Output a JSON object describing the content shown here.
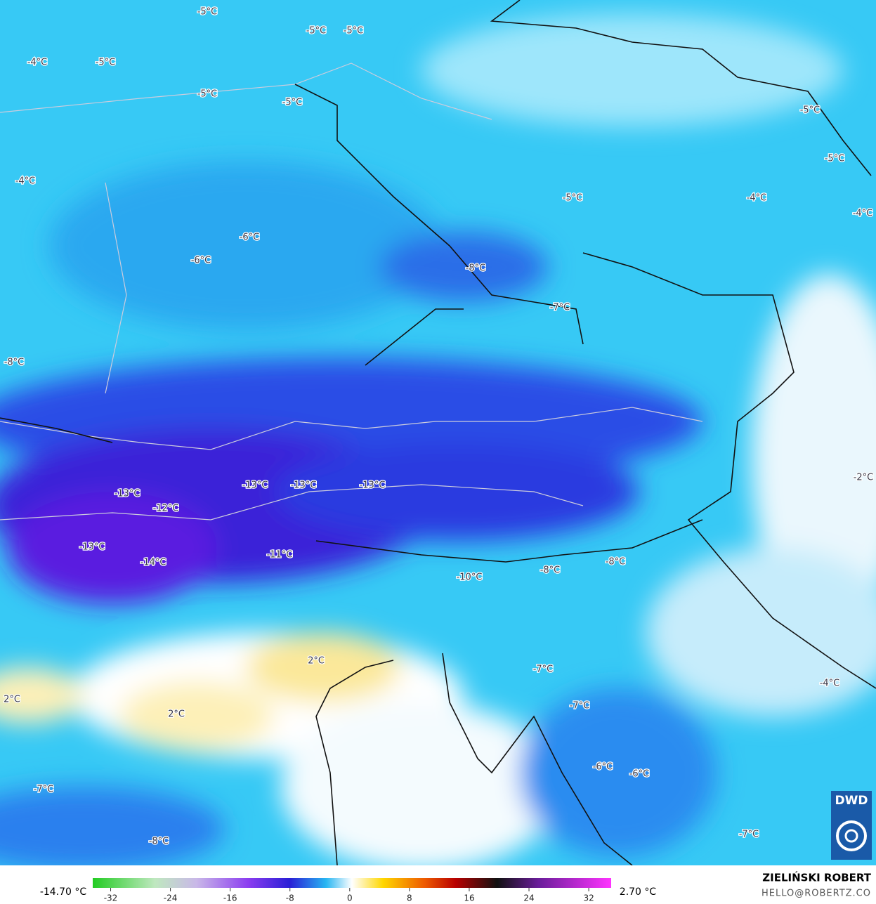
{
  "map": {
    "labels": [
      "-5°C",
      "-5°C",
      "-5°C",
      "-4°C",
      "-5°C",
      "-5°C",
      "-5°C",
      "-5°C",
      "-5°C",
      "-4°C",
      "-5°C",
      "-4°C",
      "-4°C",
      "-6°C",
      "-6°C",
      "-8°C",
      "-7°C",
      "-8°C",
      "-13°C",
      "-13°C",
      "-13°C",
      "-13°C",
      "-2°C",
      "-12°C",
      "-13°C",
      "-11°C",
      "-14°C",
      "-10°C",
      "-8°C",
      "-8°C",
      "2°C",
      "-7°C",
      "2°C",
      "-4°C",
      "2°C",
      "-7°C",
      "-6°C",
      "-6°C",
      "-7°C",
      "-8°C",
      "-7°C"
    ],
    "logo": "DWD"
  },
  "colorbar": {
    "min_label": "-14.70 °C",
    "max_label": "2.70 °C",
    "lim": [
      -34.4,
      35
    ],
    "ticks": [
      -32,
      -24,
      -16,
      -8,
      0,
      8,
      16,
      24,
      32
    ]
  },
  "credit": {
    "author": "ZIELIŃSKI ROBERT",
    "contact": "HELLO@ROBERTZ.CO"
  }
}
